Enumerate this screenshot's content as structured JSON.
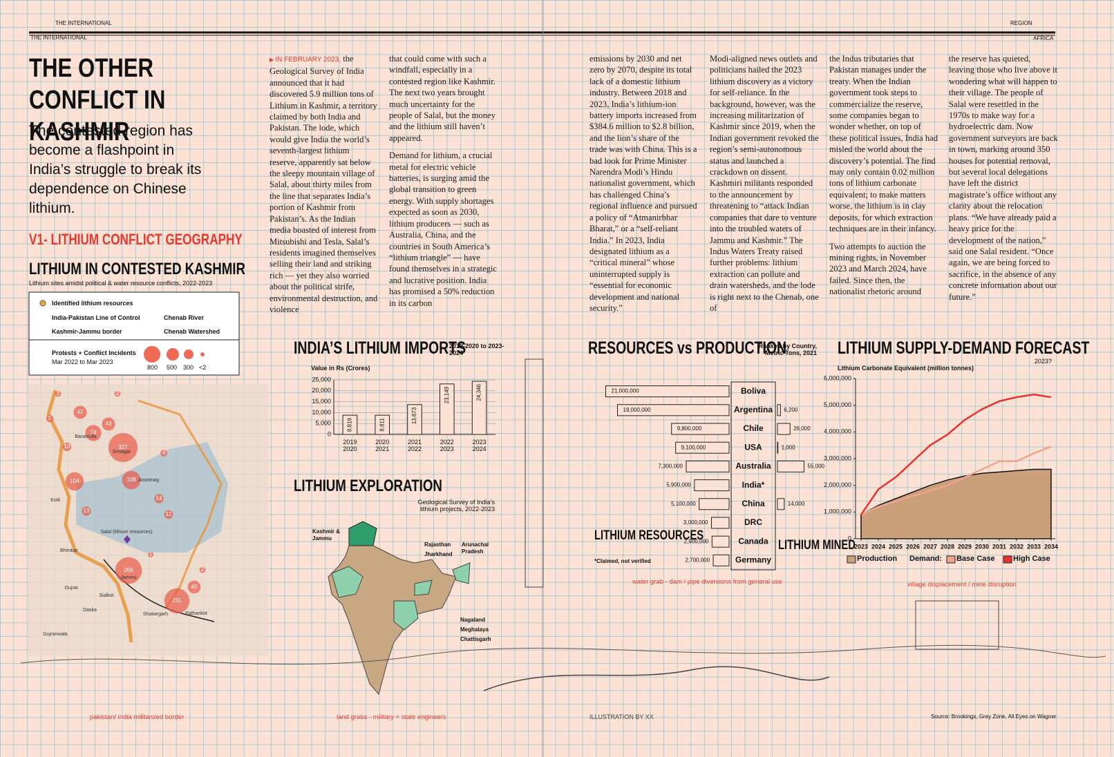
{
  "header": {
    "left_top": "THE INTERNATIONAL",
    "left_rule": "THE INTERNATIONAL",
    "right_top": "REGION",
    "right_rule": "AFRICA"
  },
  "headline": "THE OTHER CONFLICT IN KASHMIR",
  "deck": "The contested region has become a flashpoint in India’s struggle to break its dependence on Chinese lithium.",
  "section": "V1- LITHIUM CONFLICT GEOGRAPHY",
  "body": {
    "lead": "IN FEBRUARY 2023,",
    "columns": [
      [
        "the Geological Survey of India announced that it had discovered 5.9 million tons of Lithium in Kashmir, a territory claimed by both India and Pakistan. The lode, which would give India the world’s seventh-largest lithium reserve, apparently sat below the sleepy mountain village of Salal, about thirty miles from the line that separates India’s portion of Kashmir from Pakistan’s. As the Indian media boasted of interest from Mitsubishi and Tesla, Salal’s residents imagined themselves selling their land and striking rich — yet they also worried about the political strife, environmental destruction, and violence"
      ],
      [
        "that could come with such a windfall, especially in a contested region like Kashmir. The next two years brought much uncertainty for the people of Salal, but the money and the lithium still haven’t appeared.",
        "Demand for lithium, a crucial metal for electric vehicle batteries, is surging amid the global transition to green energy. With supply shortages expected as soon as 2030, lithium producers — such as Australia, China, and the countries in South America’s “lithium triangle” — have found themselves in a strategic and lucrative position. India has promised a 50% reduction in its carbon"
      ],
      [
        "emissions by 2030 and net zero by 2070, despite its total lack of a domestic lithium industry. Between 2018 and 2023, India’s lithium-ion battery imports increased from $384.6 million to $2.8 billion, and the lion’s share of the trade was with China. This is a bad look for Prime Minister Narendra Modi’s Hindu nationalist government, which has challenged China’s regional influence and pursued a policy of “Atmanirbhar Bharat,” or a “self-reliant India.” In 2023, India designated lithium as a “critical mineral” whose uninterrupted supply is “essential for economic development and national security.”"
      ],
      [
        "Modi-aligned news outlets and politicians hailed the 2023 lithium discovery as a victory for self-reliance. In the background, however, was the increasing militarization of Kashmir since 2019, when the Indian government revoked the region’s semi-autonomous status and launched a crackdown on dissent. Kashmiri militants responded to the announcement by threatening to “attack Indian companies that dare to venture into the troubled waters of Jammu and Kashmir.” The Indus Waters Treaty raised further problems: lithium extraction can pollute and drain watersheds, and the lode is right next to the Chenab, one of"
      ],
      [
        "the Indus tributaries that Pakistan manages under the treaty. When the Indian government took steps to commercialize the reserve, some companies began to wonder whether, on top of these political issues, India had misled the world about the discovery’s potential. The find may only contain 0.02 million tons of lithium carbonate equivalent; to make matters worse, the lithium is in clay deposits, for which extraction techniques are in their infancy.",
        "Two attempts to auction the mining rights, in November 2023 and March 2024, have failed. Since then, the nationalist rhetoric around"
      ],
      [
        "the reserve has quieted, leaving those who live above it wondering what will happen to their village. The people of Salal were resettled in the 1970s to make way for a hydroelectric dam. Now government surveyors are back in town, marking around 350 houses for potential removal, but several local delegations have left the district magistrate’s office without any clarity about the relocation plans. “We have already paid a heavy price for the development of the nation,” said one Salal resident. “Once again, we are being forced to sacrifice, in the absence of any concrete information about our future.”"
      ]
    ]
  },
  "kashmir_map": {
    "title": "LITHIUM IN CONTESTED KASHMIR",
    "subtitle": "Lithium sites amidst political & water resource conflicts, 2022-2023",
    "legend": {
      "resources": "Identified lithium resources",
      "loc": "India-Pakistan Line of Control",
      "river": "Chenab River",
      "border": "Kashmir-Jammu border",
      "watershed": "Chenab Watershed",
      "incidents": "Protests + Conflict Incidents",
      "period": "Mar 2022 to Mar 2023",
      "sizes": [
        "800",
        "500",
        "300",
        "<2"
      ]
    },
    "places": [
      "Baramulla",
      "Srinagar",
      "Anantnag",
      "Kotli",
      "Salal (lithium resources)",
      "Bhimbar",
      "Jammu",
      "Gujrat",
      "Sialkot",
      "Daska",
      "Gujranwala",
      "Shakargarh",
      "Pathankot"
    ],
    "incidents": [
      2,
      2,
      42,
      5,
      74,
      43,
      10,
      327,
      4,
      104,
      108,
      14,
      13,
      12,
      1,
      2,
      266,
      40,
      231
    ]
  },
  "exploration": {
    "title": "LITHIUM EXPLORATION",
    "subtitle": "Geological Survey of India’s lithium projects, 2022-2023",
    "labels": [
      "Kashmir & Jammu",
      "Rajasthan",
      "Jharkhand",
      "Arunachal Pradesh",
      "Nagaland",
      "Meghalaya",
      "Chattisgarh"
    ]
  },
  "captions": {
    "border": "pakistan/ india militarized border",
    "land": "land grabs - military + state engineers",
    "water": "water grab - dam / pipe diversions from general use",
    "village": "village displacement / mine disruption",
    "illustration": "ILLUSTRATION BY XX",
    "source": "Source: Brookings, Grey Zone, All Eyes on Wagner"
  },
  "chart_data": [
    {
      "type": "bar",
      "title": "INDIA’S LITHIUM IMPORTS",
      "subtitle": "2019-2020 to 2023-2024",
      "y_label": "Value in Rs (Crores)",
      "categories": [
        "2019 2020",
        "2020 2021",
        "2021 2022",
        "2022 2023",
        "2023 2024"
      ],
      "values": [
        8819,
        8811,
        13673,
        23149,
        24346
      ],
      "value_labels": [
        "8,819",
        "8,811",
        "13,673",
        "23,149",
        "24,346"
      ],
      "color": "#fbe2d5",
      "ylim": [
        0,
        25000
      ],
      "yticks": [
        0,
        {
          "value": 5000,
          "label": "5,000"
        },
        {
          "value": 10000,
          "label": "10,000"
        },
        {
          "value": 15000,
          "label": "15,000"
        },
        {
          "value": 20000,
          "label": "20,000"
        },
        {
          "value": 25000,
          "label": "25,000"
        }
      ],
      "grid": true
    },
    {
      "type": "bar",
      "orientation": "horizontal",
      "title": "RESOURCES vs PRODUCTION",
      "subtitle": "Ranked by Country, Metric Tons, 2021",
      "note": "*Claimed, not verified",
      "categories": [
        "Boliva",
        "Argentina",
        "Chile",
        "USA",
        "Australia",
        "India*",
        "China",
        "DRC",
        "Canada",
        "Germany"
      ],
      "series": [
        {
          "name": "LITHIUM RESOURCES",
          "color": "#fbe2d5",
          "values": [
            21000000,
            19000000,
            9800000,
            9100000,
            7300000,
            5900000,
            5100000,
            3000000,
            2900000,
            2700000
          ],
          "value_labels": [
            "21,000,000",
            "19,000,000",
            "9,800,000",
            "9,100,000",
            "7,300,000",
            "5,900,000",
            "5,100,000",
            "3,000,000",
            "2,900,000",
            "2,700,000"
          ]
        },
        {
          "name": "LITHIUM MINED",
          "color": "#fbe2d5",
          "values": [
            null,
            6200,
            26000,
            1000,
            55000,
            null,
            14000,
            null,
            null,
            null
          ],
          "value_labels": [
            null,
            "6,200",
            "26,000",
            "1,000",
            "55,000",
            null,
            "14,000",
            null,
            null,
            null
          ]
        }
      ]
    },
    {
      "type": "line",
      "title": "LITHIUM SUPPLY-DEMAND FORECAST",
      "y_label": "Lithium Carbonate Equivalent (million tonnes)",
      "note": "2023?",
      "legend_group": "Demand:",
      "x": [
        2023,
        2024,
        2025,
        2026,
        2027,
        2028,
        2029,
        2030,
        2031,
        2032,
        2033,
        2034
      ],
      "xlim": [
        2023,
        2034
      ],
      "xticks": [
        2023,
        2024,
        2025,
        2026,
        2027,
        2028,
        2029,
        2030,
        2031,
        2032,
        2033,
        2034
      ],
      "ylim": [
        0,
        6000000
      ],
      "yticks": [
        0,
        {
          "value": 1000000,
          "label": "1,000,000"
        },
        {
          "value": 2000000,
          "label": "2,000,000"
        },
        {
          "value": 3000000,
          "label": "3,000,000"
        },
        {
          "value": 4000000,
          "label": "4,000,000"
        },
        {
          "value": 5000000,
          "label": "5,000,000"
        },
        {
          "value": 6000000,
          "label": "6,000,000"
        }
      ],
      "series": [
        {
          "name": "Production",
          "color": "#c9a07a",
          "area": true,
          "values": [
            900000,
            1250000,
            1500000,
            1750000,
            2000000,
            2200000,
            2350000,
            2450000,
            2500000,
            2550000,
            2600000,
            2600000
          ]
        },
        {
          "name": "Base Case",
          "color": "#f2a48a",
          "values": [
            900000,
            1200000,
            1400000,
            1600000,
            1800000,
            2000000,
            2300000,
            2600000,
            2900000,
            2900000,
            3200000,
            3450000
          ]
        },
        {
          "name": "High Case",
          "color": "#e8312d",
          "values": [
            900000,
            1850000,
            2300000,
            2900000,
            3500000,
            3900000,
            4450000,
            4850000,
            5150000,
            5300000,
            5400000,
            5300000
          ]
        }
      ]
    }
  ]
}
